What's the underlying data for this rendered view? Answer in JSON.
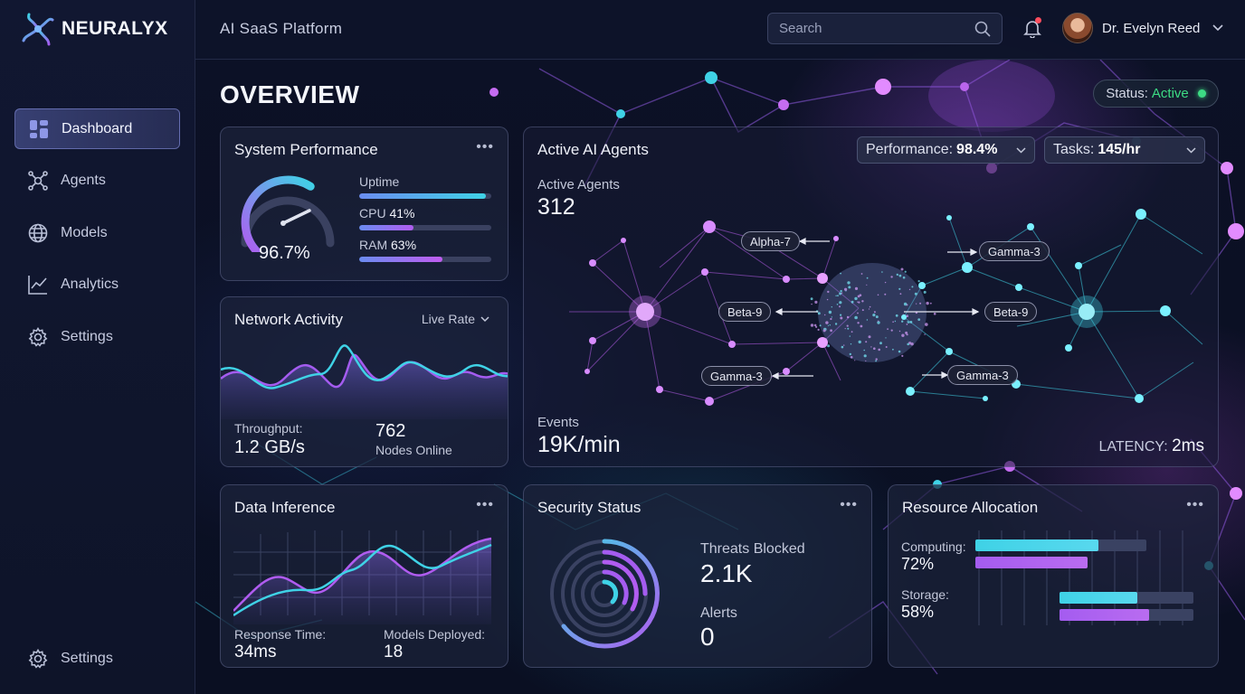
{
  "brand": {
    "name": "NEURALYX"
  },
  "header": {
    "subtitle": "AI SaaS Platform",
    "search_placeholder": "Search",
    "user_name": "Dr. Evelyn Reed"
  },
  "sidebar": {
    "items": [
      {
        "label": "Dashboard",
        "icon": "dashboard-icon",
        "active": true
      },
      {
        "label": "Agents",
        "icon": "agents-icon"
      },
      {
        "label": "Models",
        "icon": "globe-icon"
      },
      {
        "label": "Analytics",
        "icon": "chart-line-icon"
      },
      {
        "label": "Settings",
        "icon": "gear-icon"
      }
    ],
    "bottom": {
      "label": "Settings",
      "icon": "gear-icon"
    }
  },
  "main": {
    "title": "OVERVIEW",
    "status": {
      "label": "Status:",
      "value": "Active"
    }
  },
  "system_performance": {
    "title": "System Performance",
    "menu": "•••",
    "gauge_value": "96.7%",
    "gauge_fraction": 0.967,
    "metrics": [
      {
        "label": "Uptime",
        "value_text": "",
        "fraction": 0.96
      },
      {
        "label": "CPU",
        "value_text": "41%",
        "fraction": 0.41
      },
      {
        "label": "RAM",
        "value_text": "63%",
        "fraction": 0.63
      }
    ]
  },
  "network_activity": {
    "title": "Network Activity",
    "dropdown": "Live Rate",
    "throughput_label": "Throughput:",
    "throughput_value": "1.2 GB/s",
    "nodes_value": "762",
    "nodes_label": "Nodes Online"
  },
  "active_agents": {
    "title": "Active AI Agents",
    "performance_label": "Performance:",
    "performance_value": "98.4%",
    "tasks_label": "Tasks:",
    "tasks_value": "145/hr",
    "agents_label": "Active Agents",
    "agents_value": "312",
    "events_label": "Events",
    "events_value": "19K/min",
    "latency_label": "LATENCY:",
    "latency_value": "2ms",
    "node_labels": [
      "Alpha-7",
      "Beta-9",
      "Gamma-3",
      "Gamma-3",
      "Beta-9",
      "Gamma-3"
    ]
  },
  "data_inference": {
    "title": "Data Inference",
    "menu": "•••",
    "response_label": "Response Time:",
    "response_value": "34ms",
    "models_label": "Models Deployed:",
    "models_value": "18"
  },
  "security_status": {
    "title": "Security Status",
    "menu": "•••",
    "threats_label": "Threats Blocked",
    "threats_value": "2.1K",
    "alerts_label": "Alerts",
    "alerts_value": "0"
  },
  "resource_allocation": {
    "title": "Resource Allocation",
    "menu": "•••",
    "computing_label": "Computing:",
    "computing_value": "72%",
    "computing_fraction": 0.72,
    "storage_label": "Storage:",
    "storage_value": "58%",
    "storage_fraction": 0.58
  },
  "colors": {
    "cyan": "#3fd2e6",
    "purple": "#a45cf0",
    "status_green": "#3ddc84",
    "bg": "#0b1022"
  }
}
